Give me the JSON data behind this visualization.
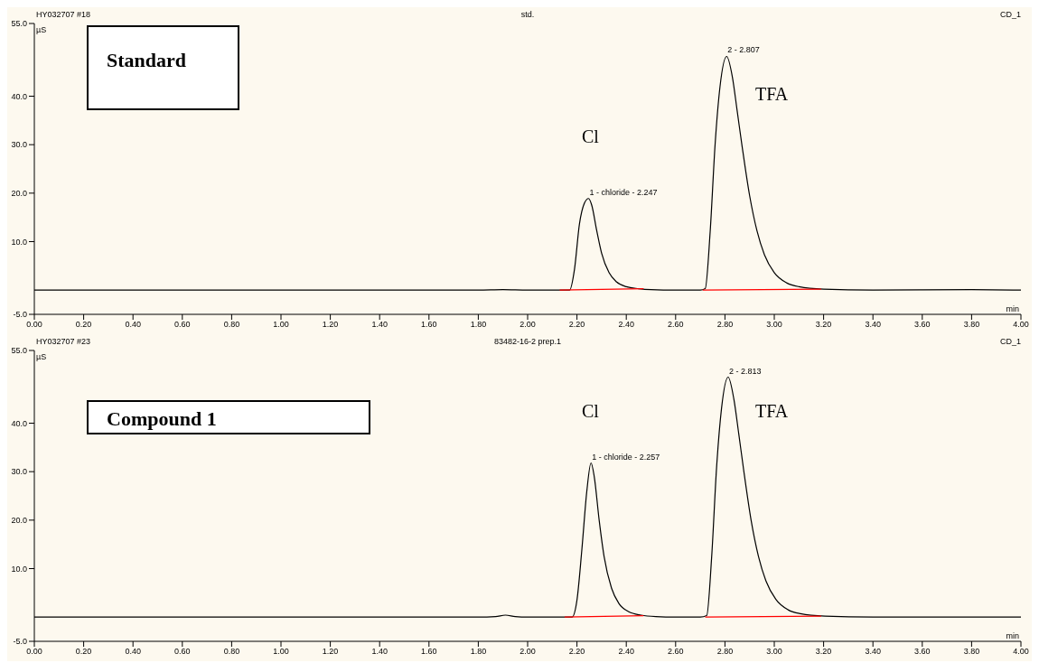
{
  "chart_data": [
    {
      "type": "line",
      "title": "std.",
      "subtitle": "Standard",
      "xlabel": "min",
      "ylabel": "µS",
      "xlim": [
        0,
        4
      ],
      "ylim": [
        -5,
        55
      ],
      "xticks": [
        {
          "value": 0,
          "label": "0.00"
        },
        {
          "value": 0.2,
          "label": "0.20"
        },
        {
          "value": 0.4,
          "label": "0.40"
        },
        {
          "value": 0.6,
          "label": "0.60"
        },
        {
          "value": 0.8,
          "label": "0.80"
        },
        {
          "value": 1,
          "label": "1.00"
        },
        {
          "value": 1.2,
          "label": "1.20"
        },
        {
          "value": 1.4,
          "label": "1.40"
        },
        {
          "value": 1.6,
          "label": "1.60"
        },
        {
          "value": 1.8,
          "label": "1.80"
        },
        {
          "value": 2,
          "label": "2.00"
        },
        {
          "value": 2.2,
          "label": "2.20"
        },
        {
          "value": 2.4,
          "label": "2.40"
        },
        {
          "value": 2.6,
          "label": "2.60"
        },
        {
          "value": 2.8,
          "label": "2.80"
        },
        {
          "value": 3,
          "label": "3.00"
        },
        {
          "value": 3.2,
          "label": "3.20"
        },
        {
          "value": 3.4,
          "label": "3.40"
        },
        {
          "value": 3.6,
          "label": "3.60"
        },
        {
          "value": 3.8,
          "label": "3.80"
        },
        {
          "value": 4,
          "label": "4.00"
        }
      ],
      "yticks": [
        {
          "value": -5,
          "label": "-5.0"
        },
        {
          "value": 10,
          "label": "10.0"
        },
        {
          "value": 20,
          "label": "20.0"
        },
        {
          "value": 30,
          "label": "30.0"
        },
        {
          "value": 40,
          "label": "40.0"
        },
        {
          "value": 55,
          "label": "55.0"
        }
      ],
      "series": [
        {
          "color": "#000000",
          "x": [
            0,
            1.8,
            1.9,
            2.0,
            2.1,
            2.17,
            2.19,
            2.21,
            2.23,
            2.247,
            2.26,
            2.28,
            2.3,
            2.33,
            2.36,
            2.4,
            2.45,
            2.5,
            2.6,
            2.7,
            2.72,
            2.74,
            2.76,
            2.78,
            2.807,
            2.83,
            2.85,
            2.87,
            2.9,
            2.93,
            2.96,
            3.0,
            3.05,
            3.1,
            3.2,
            3.4,
            3.8,
            4.0
          ],
          "values": [
            0,
            0,
            0.1,
            0,
            0,
            0,
            4.3,
            13.6,
            17.9,
            18.9,
            17.5,
            12.3,
            7.6,
            3.6,
            1.7,
            0.7,
            0.3,
            0.1,
            0,
            0,
            0.3,
            12,
            30,
            42,
            48.2,
            44,
            36.8,
            29.5,
            19.5,
            12.2,
            7.3,
            3.6,
            1.5,
            0.7,
            0.2,
            0,
            0.1,
            0
          ]
        },
        {
          "color": "#ff0000",
          "x": [
            2.13,
            2.47
          ],
          "values": [
            0,
            0.3
          ]
        },
        {
          "color": "#ff0000",
          "x": [
            2.71,
            3.19
          ],
          "values": [
            0,
            0.2
          ]
        }
      ],
      "annotations": [
        "HY032707 #18",
        "CD_1",
        "Cl",
        "TFA",
        {
          "text": "1 - chloride - 2.247",
          "x": 2.247,
          "y": 18.9
        },
        {
          "text": "2 - 2.807",
          "x": 2.807,
          "y": 48.2
        }
      ]
    },
    {
      "type": "line",
      "title": "83482-16-2 prep.1",
      "subtitle": "Compound 1",
      "xlabel": "min",
      "ylabel": "µS",
      "xlim": [
        0,
        4
      ],
      "ylim": [
        -5,
        55
      ],
      "xticks": [
        {
          "value": 0,
          "label": "0.00"
        },
        {
          "value": 0.2,
          "label": "0.20"
        },
        {
          "value": 0.4,
          "label": "0.40"
        },
        {
          "value": 0.6,
          "label": "0.60"
        },
        {
          "value": 0.8,
          "label": "0.80"
        },
        {
          "value": 1,
          "label": "1.00"
        },
        {
          "value": 1.2,
          "label": "1.20"
        },
        {
          "value": 1.4,
          "label": "1.40"
        },
        {
          "value": 1.6,
          "label": "1.60"
        },
        {
          "value": 1.8,
          "label": "1.80"
        },
        {
          "value": 2,
          "label": "2.00"
        },
        {
          "value": 2.2,
          "label": "2.20"
        },
        {
          "value": 2.4,
          "label": "2.40"
        },
        {
          "value": 2.6,
          "label": "2.60"
        },
        {
          "value": 2.8,
          "label": "2.80"
        },
        {
          "value": 3,
          "label": "3.00"
        },
        {
          "value": 3.2,
          "label": "3.20"
        },
        {
          "value": 3.4,
          "label": "3.40"
        },
        {
          "value": 3.6,
          "label": "3.60"
        },
        {
          "value": 3.8,
          "label": "3.80"
        },
        {
          "value": 4,
          "label": "4.00"
        }
      ],
      "yticks": [
        {
          "value": -5,
          "label": "-5.0"
        },
        {
          "value": 10,
          "label": "10.0"
        },
        {
          "value": 20,
          "label": "20.0"
        },
        {
          "value": 30,
          "label": "30.0"
        },
        {
          "value": 40,
          "label": "40.0"
        },
        {
          "value": 55,
          "label": "55.0"
        }
      ],
      "series": [
        {
          "color": "#000000",
          "x": [
            0,
            1.8,
            1.87,
            1.91,
            1.95,
            2.0,
            2.1,
            2.18,
            2.2,
            2.22,
            2.24,
            2.257,
            2.27,
            2.29,
            2.31,
            2.34,
            2.37,
            2.41,
            2.46,
            2.52,
            2.6,
            2.7,
            2.726,
            2.746,
            2.766,
            2.786,
            2.813,
            2.836,
            2.856,
            2.876,
            2.906,
            2.936,
            2.966,
            3.006,
            3.056,
            3.106,
            3.206,
            3.4,
            3.8,
            4.0
          ],
          "values": [
            0,
            0,
            0.1,
            0.4,
            0.1,
            0,
            0,
            0,
            3.5,
            14,
            26,
            31.8,
            29,
            20,
            12.5,
            6,
            2.8,
            1.1,
            0.4,
            0.1,
            0,
            0,
            0.3,
            12.3,
            30.8,
            43,
            49.5,
            45,
            37.8,
            30.3,
            20,
            12.5,
            7.5,
            3.7,
            1.5,
            0.7,
            0.2,
            0,
            0,
            0
          ]
        },
        {
          "color": "#ff0000",
          "x": [
            2.15,
            2.47
          ],
          "values": [
            0,
            0.3
          ]
        },
        {
          "color": "#ff0000",
          "x": [
            2.72,
            3.19
          ],
          "values": [
            0,
            0.2
          ]
        }
      ],
      "annotations": [
        "HY032707 #23",
        "CD_1",
        "Cl",
        "TFA",
        {
          "text": "1 - chloride - 2.257",
          "x": 2.257,
          "y": 31.8
        },
        {
          "text": "2 - 2.813",
          "x": 2.813,
          "y": 49.5
        }
      ]
    }
  ]
}
